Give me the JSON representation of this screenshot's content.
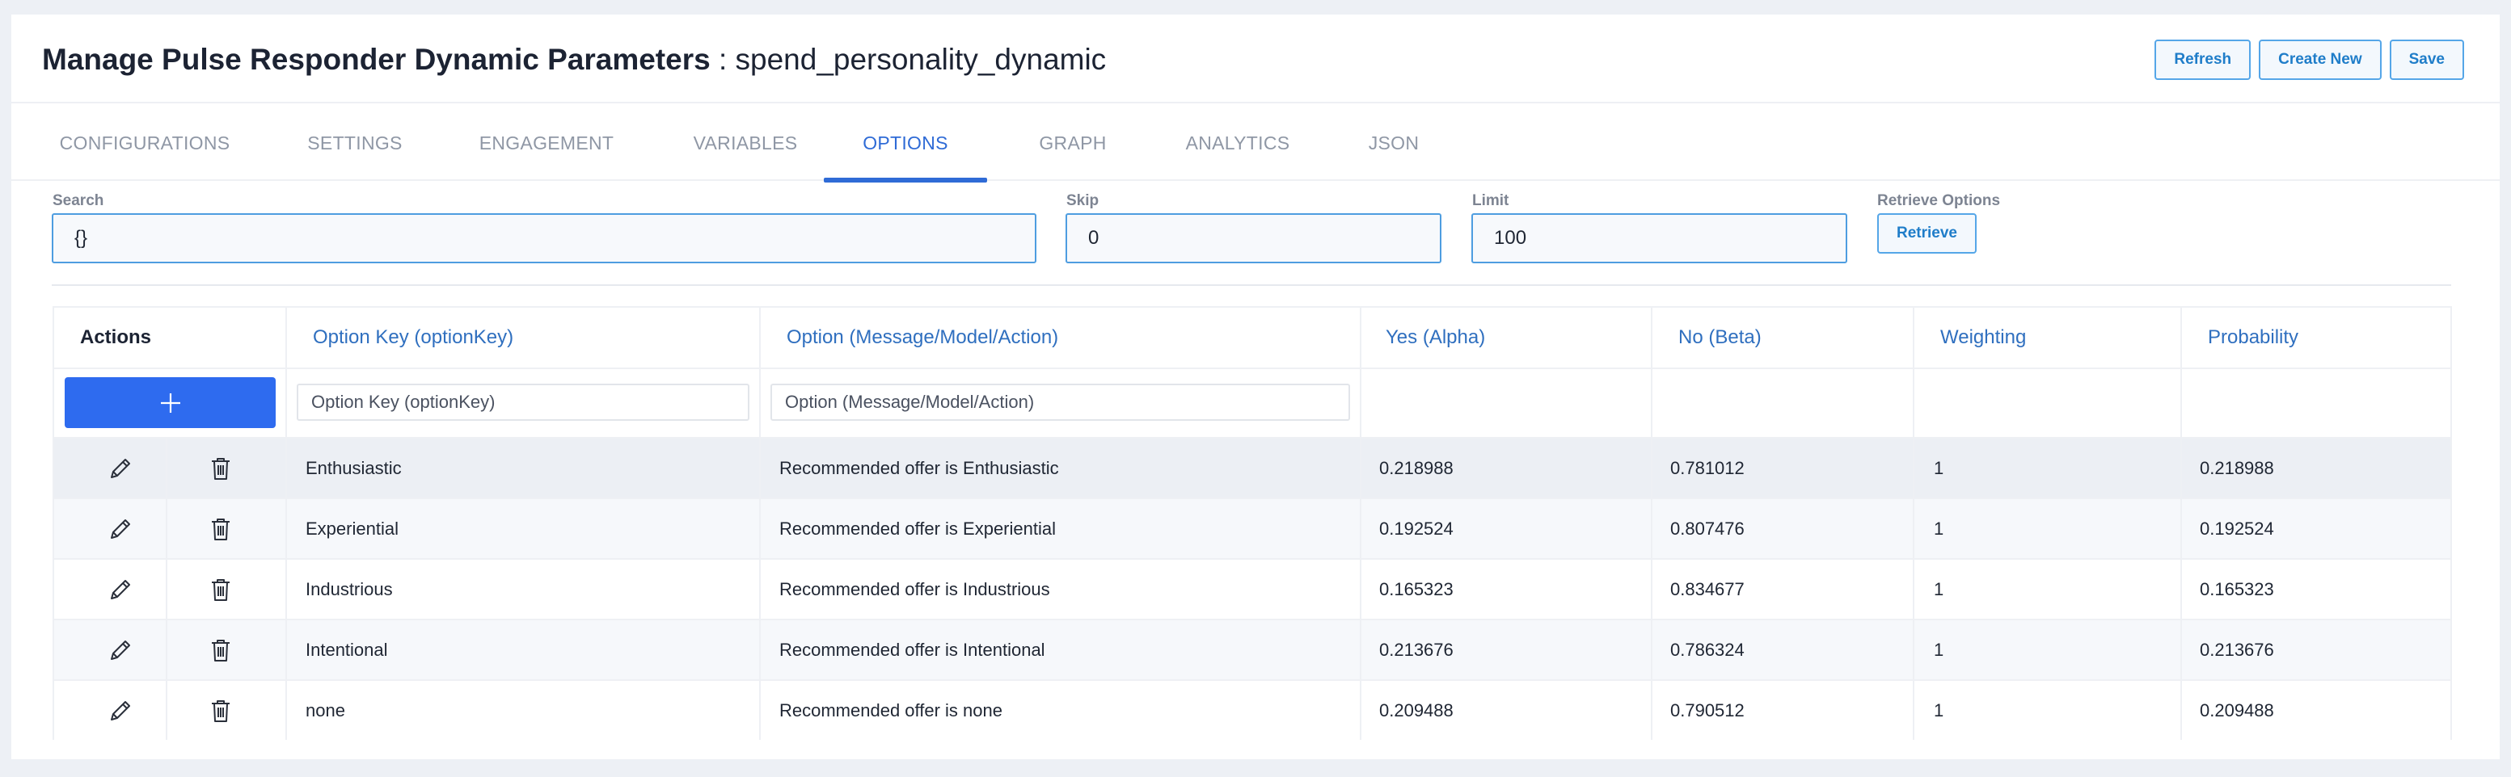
{
  "header": {
    "title": "Manage Pulse Responder Dynamic Parameters",
    "separator": " : ",
    "subtitle": "spend_personality_dynamic",
    "buttons": {
      "refresh": "Refresh",
      "create_new": "Create New",
      "save": "Save"
    }
  },
  "tabs": [
    {
      "label": "CONFIGURATIONS",
      "active": false
    },
    {
      "label": "SETTINGS",
      "active": false
    },
    {
      "label": "ENGAGEMENT",
      "active": false
    },
    {
      "label": "VARIABLES",
      "active": false
    },
    {
      "label": "OPTIONS",
      "active": true
    },
    {
      "label": "GRAPH",
      "active": false
    },
    {
      "label": "ANALYTICS",
      "active": false
    },
    {
      "label": "JSON",
      "active": false
    }
  ],
  "filters": {
    "search": {
      "label": "Search",
      "value": "{}"
    },
    "skip": {
      "label": "Skip",
      "value": "0"
    },
    "limit": {
      "label": "Limit",
      "value": "100"
    },
    "retrieve": {
      "label": "Retrieve Options",
      "button": "Retrieve"
    }
  },
  "table": {
    "columns": {
      "actions": "Actions",
      "option_key": "Option Key (optionKey)",
      "option": "Option (Message/Model/Action)",
      "yes": "Yes (Alpha)",
      "no": "No (Beta)",
      "weighting": "Weighting",
      "probability": "Probability"
    },
    "filter_placeholders": {
      "option_key": "Option Key (optionKey)",
      "option": "Option (Message/Model/Action)"
    },
    "add_icon": "plus-icon",
    "rows": [
      {
        "option_key": "Enthusiastic",
        "option": "Recommended offer is Enthusiastic",
        "yes": "0.218988",
        "no": "0.781012",
        "weighting": "1",
        "probability": "0.218988"
      },
      {
        "option_key": "Experiential",
        "option": "Recommended offer is Experiential",
        "yes": "0.192524",
        "no": "0.807476",
        "weighting": "1",
        "probability": "0.192524"
      },
      {
        "option_key": "Industrious",
        "option": "Recommended offer is Industrious",
        "yes": "0.165323",
        "no": "0.834677",
        "weighting": "1",
        "probability": "0.165323"
      },
      {
        "option_key": "Intentional",
        "option": "Recommended offer is Intentional",
        "yes": "0.213676",
        "no": "0.786324",
        "weighting": "1",
        "probability": "0.213676"
      },
      {
        "option_key": "none",
        "option": "Recommended offer is none",
        "yes": "0.209488",
        "no": "0.790512",
        "weighting": "1",
        "probability": "0.209488"
      }
    ]
  },
  "colors": {
    "accent": "#2f6bd6",
    "add_button": "#2e6bef",
    "header_link": "#2f6fbf",
    "button_border": "#55a6e8",
    "hover_row": "#eceff4",
    "alt_row": "#f6f8fb"
  }
}
